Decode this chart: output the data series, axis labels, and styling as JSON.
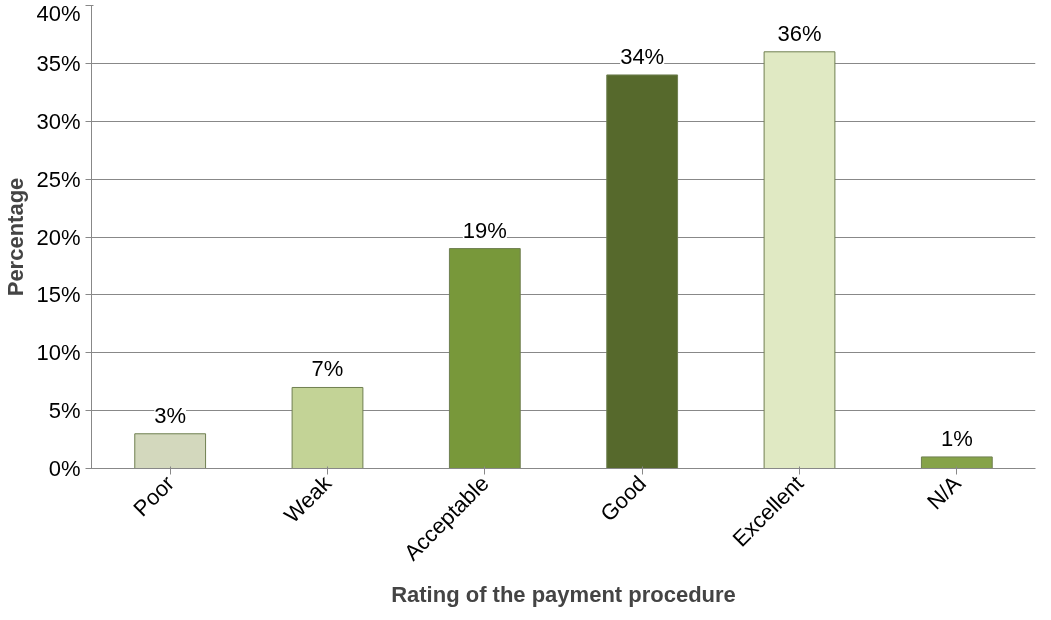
{
  "chart_data": {
    "type": "bar",
    "xlabel": "Rating of the payment procedure",
    "ylabel": "Percentage",
    "categories": [
      "Poor",
      "Weak",
      "Acceptable",
      "Good",
      "Excellent",
      "N/A"
    ],
    "values": [
      3,
      7,
      19,
      34,
      36,
      1
    ],
    "colors": [
      "#d3d8bd",
      "#c3d396",
      "#78983a",
      "#56692c",
      "#e0e9c3",
      "#86a349"
    ],
    "value_labels": [
      "3%",
      "7%",
      "19%",
      "34%",
      "36%",
      "1%"
    ],
    "ylim": [
      0,
      40
    ],
    "yticks": [
      {
        "value": 0,
        "label": "0%"
      },
      {
        "value": 5,
        "label": "5%"
      },
      {
        "value": 10,
        "label": "10%"
      },
      {
        "value": 15,
        "label": "15%"
      },
      {
        "value": 20,
        "label": "20%"
      },
      {
        "value": 25,
        "label": "25%"
      },
      {
        "value": 30,
        "label": "30%"
      },
      {
        "value": 35,
        "label": "35%"
      },
      {
        "value": 40,
        "label": "40%"
      }
    ],
    "grid": "y"
  }
}
